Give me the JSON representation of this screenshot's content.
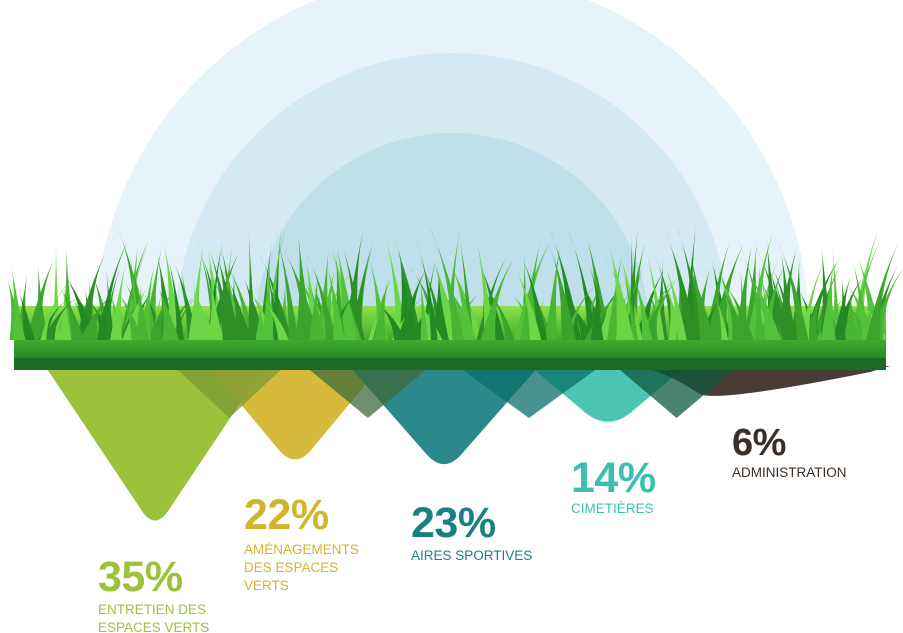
{
  "chart_data": {
    "type": "pie",
    "title": "",
    "categories": [
      "ENTRETIEN DES ESPACES VERTS",
      "AMÉNAGEMENTS DES ESPACES VERTS",
      "AIRES SPORTIVES",
      "CIMETIÈRES",
      "ADMINISTRATION"
    ],
    "values": [
      35,
      22,
      23,
      14,
      6
    ],
    "unit": "%",
    "legend": "none",
    "grid": false
  },
  "labels": [
    {
      "percent": "35%",
      "caption": "ENTRETIEN DES\nESPACES VERTS",
      "color": "#9bc23b"
    },
    {
      "percent": "22%",
      "caption": "AMÉNAGEMENTS\nDES ESPACES\nVERTS",
      "color": "#d2b52c"
    },
    {
      "percent": "23%",
      "caption": "AIRES SPORTIVES",
      "color": "#1b8082"
    },
    {
      "percent": "14%",
      "caption": "CIMETIÈRES",
      "color": "#3dbfad"
    },
    {
      "percent": "6%",
      "caption": "ADMINISTRATION",
      "color": "#3a2e27"
    }
  ],
  "colors": {
    "grass_light": "#5fcf35",
    "grass_dark": "#1f7a1f",
    "soil_band": "#0f4d1e",
    "halo": "#cde8f2"
  }
}
